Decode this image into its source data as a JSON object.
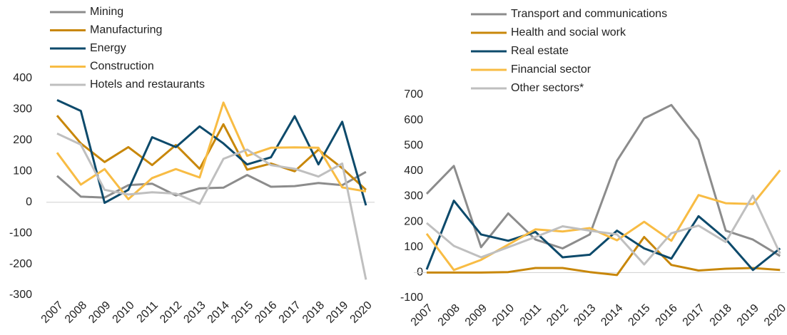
{
  "chart_data": [
    {
      "type": "line",
      "categories": [
        "2007",
        "2008",
        "2009",
        "2010",
        "2011",
        "2012",
        "2013",
        "2014",
        "2015",
        "2016",
        "2017",
        "2018",
        "2019",
        "2020"
      ],
      "series": [
        {
          "name": "Mining",
          "color": "#8c8c8c",
          "values": [
            85,
            18,
            15,
            55,
            60,
            22,
            45,
            47,
            88,
            50,
            52,
            62,
            55,
            98
          ]
        },
        {
          "name": "Manufacturing",
          "color": "#c8870a",
          "values": [
            280,
            190,
            130,
            178,
            120,
            185,
            108,
            252,
            105,
            125,
            100,
            170,
            110,
            40
          ]
        },
        {
          "name": "Energy",
          "color": "#0d4a6b",
          "values": [
            330,
            295,
            -2,
            40,
            210,
            178,
            245,
            190,
            122,
            145,
            278,
            122,
            260,
            -10
          ]
        },
        {
          "name": "Construction",
          "color": "#f8bc44",
          "values": [
            160,
            57,
            107,
            10,
            78,
            107,
            80,
            322,
            150,
            176,
            177,
            176,
            48,
            35
          ]
        },
        {
          "name": "Hotels and restaurants",
          "color": "#bfbfbf",
          "values": [
            222,
            186,
            40,
            25,
            32,
            28,
            -5,
            140,
            170,
            120,
            108,
            83,
            125,
            -250
          ]
        }
      ],
      "ylim": [
        -300,
        400
      ],
      "yticks": [
        -300,
        -200,
        -100,
        0,
        100,
        200,
        300,
        400
      ],
      "grid": false,
      "legend": "top-left"
    },
    {
      "type": "line",
      "categories": [
        "2007",
        "2008",
        "2009",
        "2010",
        "2011",
        "2012",
        "2013",
        "2014",
        "2015",
        "2016",
        "2017",
        "2018",
        "2019",
        "2020"
      ],
      "series": [
        {
          "name": "Transport and communications",
          "color": "#8c8c8c",
          "values": [
            310,
            420,
            100,
            233,
            130,
            95,
            150,
            440,
            607,
            660,
            523,
            165,
            130,
            65
          ]
        },
        {
          "name": "Health and social work",
          "color": "#c8870a",
          "values": [
            0,
            0,
            0,
            2,
            18,
            18,
            2,
            -10,
            140,
            30,
            8,
            15,
            18,
            10
          ]
        },
        {
          "name": "Real estate",
          "color": "#0d4a6b",
          "values": [
            12,
            283,
            150,
            125,
            160,
            60,
            70,
            165,
            95,
            55,
            222,
            132,
            10,
            95
          ]
        },
        {
          "name": "Financial sector",
          "color": "#f8bc44",
          "values": [
            153,
            10,
            50,
            110,
            170,
            162,
            175,
            127,
            200,
            125,
            305,
            273,
            270,
            403
          ]
        },
        {
          "name": "Other sectors*",
          "color": "#bfbfbf",
          "values": [
            195,
            105,
            60,
            100,
            140,
            182,
            165,
            150,
            32,
            155,
            185,
            120,
            303,
            75
          ]
        }
      ],
      "ylim": [
        -100,
        700
      ],
      "yticks": [
        -100,
        0,
        100,
        200,
        300,
        400,
        500,
        600,
        700
      ],
      "grid": false,
      "legend": "top-left"
    }
  ]
}
